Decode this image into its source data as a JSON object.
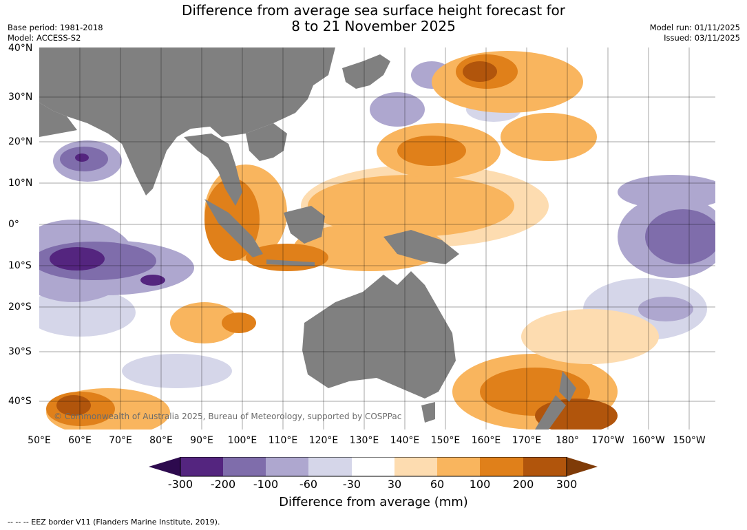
{
  "title_line1": "Difference from average sea surface height forecast for",
  "title_line2": "8 to 21 November 2025",
  "base_period": "Base period: 1981-2018",
  "model": "Model: ACCESS-S2",
  "model_run": "Model run: 01/11/2025",
  "issued": "Issued: 03/11/2025",
  "copyright": "© Commonwealth of Australia 2025, Bureau of Meteorology, supported by COSPPac",
  "lat_labels": [
    "40°N",
    "30°N",
    "20°N",
    "10°N",
    "0°",
    "10°S",
    "20°S",
    "30°S",
    "40°S"
  ],
  "lon_labels": [
    "50°E",
    "60°E",
    "70°E",
    "80°E",
    "90°E",
    "100°E",
    "110°E",
    "120°E",
    "130°E",
    "140°E",
    "150°E",
    "160°E",
    "170°E",
    "180°",
    "170°W",
    "160°W",
    "150°W"
  ],
  "colorbar": {
    "ticks": [
      "-300",
      "-200",
      "-100",
      "-60",
      "-30",
      "30",
      "60",
      "100",
      "200",
      "300"
    ],
    "label": "Difference from average (mm)",
    "colors": [
      "#2d0a4e",
      "#54257f",
      "#7f6dab",
      "#aea7cf",
      "#d5d6e9",
      "#ffffff",
      "#fddcb0",
      "#f9b55e",
      "#e0801a",
      "#b1550c",
      "#7f3b08"
    ]
  },
  "footnote": "-- -- -- EEZ border V11 (Flanders Marine Institute, 2019).",
  "land_color": "#808080"
}
